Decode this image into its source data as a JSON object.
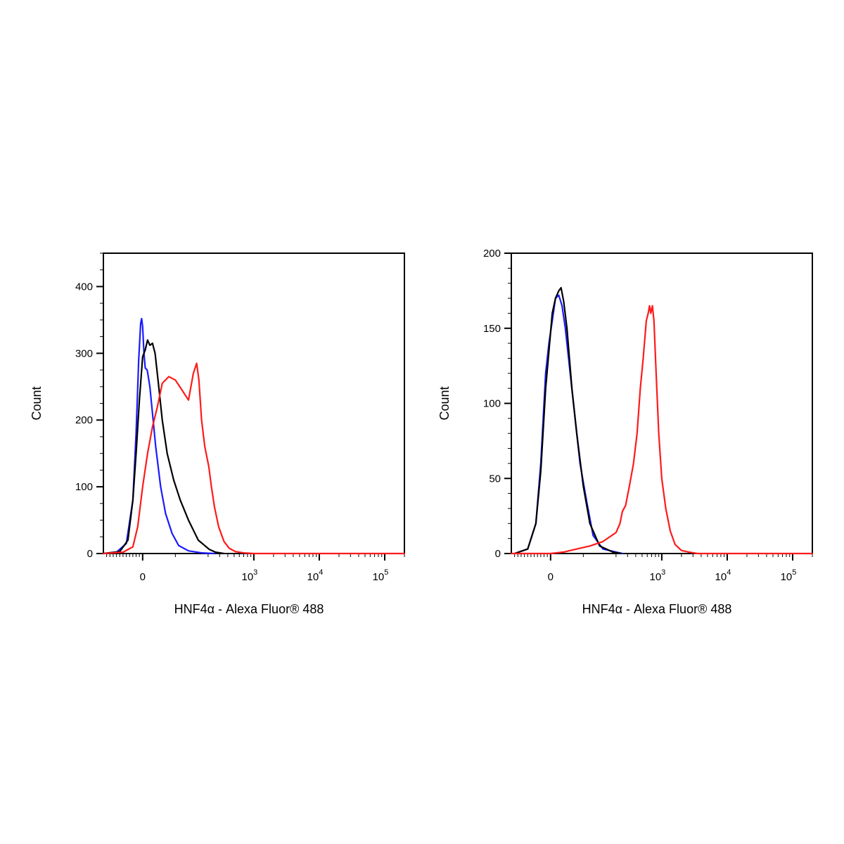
{
  "chart_data": [
    {
      "type": "line",
      "title": "",
      "xlabel": "HNF4α - Alexa Fluor® 488",
      "ylabel": "Count",
      "x_scale": "biexponential",
      "xlim": [
        -120,
        200000
      ],
      "ylim": [
        0,
        450
      ],
      "grid": false,
      "legend": "none",
      "x_ticks": [
        {
          "value": 0,
          "base": "0",
          "exp": ""
        },
        {
          "value": 1000,
          "base": "10",
          "exp": "3"
        },
        {
          "value": 10000,
          "base": "10",
          "exp": "4"
        },
        {
          "value": 100000,
          "base": "10",
          "exp": "5"
        }
      ],
      "y_ticks": [
        0,
        100,
        200,
        300,
        400
      ],
      "y_tick_labels": [
        "0",
        "100",
        "200",
        "300",
        "400"
      ],
      "series": [
        {
          "color": "#1a1aff",
          "x": [
            -120,
            -80,
            -50,
            -30,
            -20,
            -12,
            -6,
            -3,
            0,
            4,
            8,
            14,
            22,
            30,
            40,
            55,
            70,
            90,
            110,
            140,
            180,
            250
          ],
          "y": [
            0,
            2,
            15,
            80,
            180,
            290,
            345,
            352,
            340,
            300,
            278,
            275,
            250,
            210,
            160,
            100,
            60,
            30,
            12,
            4,
            1,
            0
          ]
        },
        {
          "color": "#000000",
          "x": [
            -120,
            -70,
            -45,
            -30,
            -20,
            -10,
            0,
            8,
            15,
            22,
            30,
            38,
            48,
            60,
            75,
            95,
            115,
            140,
            170,
            210,
            260,
            350
          ],
          "y": [
            0,
            3,
            20,
            80,
            150,
            230,
            295,
            305,
            320,
            312,
            315,
            300,
            255,
            200,
            150,
            110,
            80,
            50,
            20,
            6,
            2,
            0
          ]
        },
        {
          "color": "#ff1a1a",
          "x": [
            -120,
            -60,
            -30,
            -15,
            0,
            15,
            30,
            45,
            60,
            80,
            100,
            120,
            140,
            155,
            165,
            172,
            180,
            190,
            205,
            225,
            250,
            290,
            350,
            420,
            520,
            700,
            1000,
            200000
          ],
          "y": [
            0,
            2,
            10,
            40,
            100,
            150,
            190,
            220,
            255,
            265,
            260,
            245,
            230,
            270,
            285,
            260,
            200,
            160,
            130,
            100,
            70,
            40,
            18,
            8,
            3,
            1,
            0,
            0
          ]
        }
      ]
    },
    {
      "type": "line",
      "title": "",
      "xlabel": "HNF4α - Alexa Fluor® 488",
      "ylabel": "Count",
      "x_scale": "biexponential",
      "xlim": [
        -120,
        200000
      ],
      "ylim": [
        0,
        200
      ],
      "grid": false,
      "legend": "none",
      "x_ticks": [
        {
          "value": 0,
          "base": "0",
          "exp": ""
        },
        {
          "value": 1000,
          "base": "10",
          "exp": "3"
        },
        {
          "value": 10000,
          "base": "10",
          "exp": "4"
        },
        {
          "value": 100000,
          "base": "10",
          "exp": "5"
        }
      ],
      "y_ticks": [
        0,
        50,
        100,
        150,
        200
      ],
      "y_tick_labels": [
        "0",
        "50",
        "100",
        "150",
        "200"
      ],
      "series": [
        {
          "color": "#1a1aff",
          "x": [
            -110,
            -70,
            -45,
            -30,
            -15,
            -5,
            5,
            15,
            25,
            35,
            45,
            60,
            75,
            90,
            110,
            130,
            160,
            200,
            250
          ],
          "y": [
            0,
            3,
            20,
            60,
            120,
            140,
            155,
            170,
            172,
            165,
            150,
            120,
            90,
            60,
            35,
            12,
            3,
            1,
            0
          ]
        },
        {
          "color": "#000000",
          "x": [
            -110,
            -70,
            -45,
            -30,
            -15,
            -5,
            5,
            15,
            25,
            32,
            40,
            50,
            65,
            80,
            100,
            120,
            150,
            190,
            240
          ],
          "y": [
            0,
            3,
            20,
            55,
            110,
            135,
            160,
            170,
            175,
            177,
            168,
            150,
            110,
            80,
            45,
            20,
            5,
            1,
            0
          ]
        },
        {
          "color": "#ff1a1a",
          "x": [
            -120,
            0,
            40,
            80,
            120,
            160,
            200,
            230,
            250,
            280,
            320,
            370,
            420,
            470,
            520,
            580,
            620,
            650,
            680,
            720,
            760,
            820,
            900,
            1000,
            1150,
            1350,
            1600,
            2000,
            2600,
            3500,
            200000
          ],
          "y": [
            0,
            0,
            1,
            3,
            5,
            8,
            14,
            20,
            28,
            32,
            45,
            60,
            80,
            110,
            130,
            155,
            160,
            165,
            160,
            165,
            155,
            120,
            80,
            50,
            30,
            15,
            6,
            2,
            1,
            0,
            0
          ]
        }
      ]
    }
  ]
}
